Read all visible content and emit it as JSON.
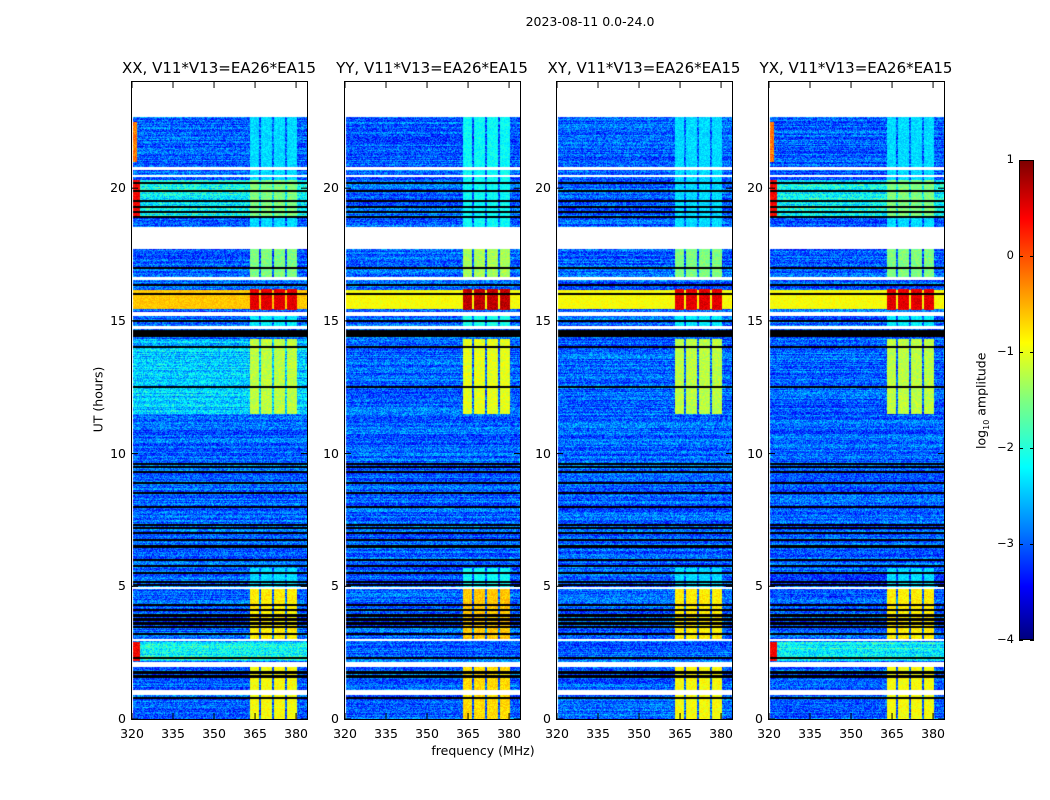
{
  "chart_data": {
    "type": "heatmap",
    "title": "2023-08-11 0.0-24.0",
    "xlabel": "frequency (MHz)",
    "ylabel": "UT (hours)",
    "xlim": [
      320,
      384
    ],
    "ylim": [
      0,
      24
    ],
    "xticks": [
      "320",
      "335",
      "350",
      "365",
      "380"
    ],
    "xtick_values": [
      320,
      335,
      350,
      365,
      380
    ],
    "yticks": [
      "0",
      "5",
      "10",
      "15",
      "20"
    ],
    "ytick_values": [
      0,
      5,
      10,
      15,
      20
    ],
    "panels": [
      {
        "title": "XX, V11*V13=EA26*EA15",
        "lowfreq_rfi": true
      },
      {
        "title": "YY, V11*V13=EA26*EA15",
        "lowfreq_rfi": false
      },
      {
        "title": "XY, V11*V13=EA26*EA15",
        "lowfreq_rfi": false
      },
      {
        "title": "YX, V11*V13=EA26*EA15",
        "lowfreq_rfi": true
      }
    ],
    "colorbar": {
      "label_main": "log",
      "label_sub": "10",
      "label_rest": " amplitude",
      "colormap": "jet",
      "range": [
        -4,
        1
      ],
      "ticks": [
        "1",
        "0",
        "−1",
        "−2",
        "−3",
        "−4"
      ],
      "tick_values": [
        1,
        0,
        -1,
        -2,
        -3,
        -4
      ]
    },
    "data_hours": [
      0,
      22.7
    ],
    "data_freq_mhz": [
      320.5,
      384
    ],
    "background_log_amp": -2.9,
    "flagged_hours": [
      [
        0.9,
        1.1
      ],
      [
        1.95,
        2.15
      ],
      [
        2.93,
        3.0
      ],
      [
        4.9,
        4.98
      ],
      [
        14.7,
        14.82
      ],
      [
        15.2,
        15.35
      ],
      [
        16.55,
        16.65
      ],
      [
        17.7,
        18.55
      ],
      [
        20.42,
        20.5
      ],
      [
        20.68,
        20.8
      ]
    ],
    "black_rows_hours": [
      0.8,
      1.6,
      1.75,
      2.3,
      3.2,
      3.45,
      3.6,
      3.75,
      3.9,
      4.1,
      4.3,
      5.05,
      5.15,
      5.5,
      5.75,
      6.0,
      6.5,
      6.75,
      7.0,
      7.2,
      7.3,
      8.0,
      8.5,
      8.9,
      9.3,
      9.5,
      9.6,
      12.5,
      14.0,
      14.45,
      14.5,
      14.55,
      14.6,
      15.0,
      16.0,
      16.35,
      17.0,
      18.9,
      19.1,
      19.3,
      19.5,
      19.9,
      20.2
    ],
    "bright_band_mhz": [
      363,
      380.5
    ],
    "band_gaps_mhz": [
      366.8,
      371.5,
      376.3
    ],
    "band_levels": [
      {
        "hours": [
          0,
          0.9
        ],
        "level": -0.9
      },
      {
        "hours": [
          1.1,
          1.95
        ],
        "level": -0.9
      },
      {
        "hours": [
          2.95,
          4.9
        ],
        "level": -0.8
      },
      {
        "hours": [
          4.98,
          5.7
        ],
        "level": -2.3
      },
      {
        "hours": [
          11.5,
          14.3
        ],
        "level": -1.2
      },
      {
        "hours": [
          14.82,
          15.2
        ],
        "level": -2.2
      },
      {
        "hours": [
          15.4,
          16.2
        ],
        "level": 0.5
      },
      {
        "hours": [
          16.65,
          17.7
        ],
        "level": -1.5
      },
      {
        "hours": [
          18.55,
          22.7
        ],
        "level": -2.3
      }
    ],
    "broadband_rfi": {
      "hours": [
        15.45,
        16.15
      ],
      "level": -0.9
    }
  }
}
